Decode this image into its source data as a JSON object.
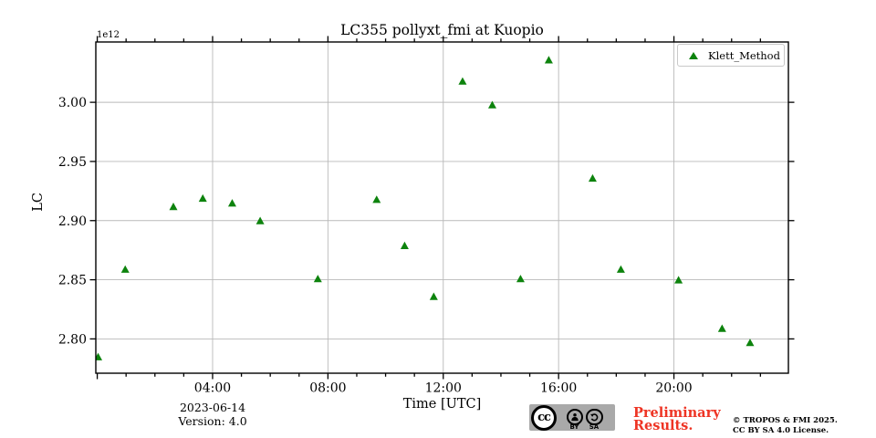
{
  "chart_data": {
    "type": "scatter",
    "title": "LC355 pollyxt_fmi at Kuopio",
    "xlabel": "Time [UTC]",
    "ylabel": "LC",
    "y_offset_label": "1e12",
    "y_unit_factor": 1000000000000.0,
    "grid": true,
    "legend_position": "upper right",
    "xlim_hours": [
      -0.05,
      23.97
    ],
    "ylim": [
      2.771,
      3.051
    ],
    "x_major_ticks": {
      "hours": [
        4,
        8,
        12,
        16,
        20
      ],
      "labels": [
        "04:00",
        "08:00",
        "12:00",
        "16:00",
        "20:00"
      ]
    },
    "x_minor_tick_every_hours": 1,
    "x_edge_tick_hours": [
      0
    ],
    "y_ticks": {
      "values": [
        2.8,
        2.85,
        2.9,
        2.95,
        3.0
      ],
      "labels": [
        "2.80",
        "2.85",
        "2.90",
        "2.95",
        "3.00"
      ]
    },
    "series": [
      {
        "name": "Klett_Method",
        "marker": "triangle-up",
        "color": "#0d830d",
        "points": [
          {
            "time_utc": "00:02",
            "hour": 0.03,
            "lc_1e12": 2.785
          },
          {
            "time_utc": "00:58",
            "hour": 0.97,
            "lc_1e12": 2.859
          },
          {
            "time_utc": "02:38",
            "hour": 2.64,
            "lc_1e12": 2.912
          },
          {
            "time_utc": "03:40",
            "hour": 3.66,
            "lc_1e12": 2.919
          },
          {
            "time_utc": "04:41",
            "hour": 4.68,
            "lc_1e12": 2.915
          },
          {
            "time_utc": "05:39",
            "hour": 5.65,
            "lc_1e12": 2.9
          },
          {
            "time_utc": "07:39",
            "hour": 7.65,
            "lc_1e12": 2.851
          },
          {
            "time_utc": "09:41",
            "hour": 9.69,
            "lc_1e12": 2.918
          },
          {
            "time_utc": "10:40",
            "hour": 10.66,
            "lc_1e12": 2.879
          },
          {
            "time_utc": "11:40",
            "hour": 11.67,
            "lc_1e12": 2.836
          },
          {
            "time_utc": "12:40",
            "hour": 12.67,
            "lc_1e12": 3.018
          },
          {
            "time_utc": "13:42",
            "hour": 13.7,
            "lc_1e12": 2.998
          },
          {
            "time_utc": "14:41",
            "hour": 14.68,
            "lc_1e12": 2.851
          },
          {
            "time_utc": "15:40",
            "hour": 15.66,
            "lc_1e12": 3.036
          },
          {
            "time_utc": "17:11",
            "hour": 17.18,
            "lc_1e12": 2.936
          },
          {
            "time_utc": "18:10",
            "hour": 18.16,
            "lc_1e12": 2.859
          },
          {
            "time_utc": "20:10",
            "hour": 20.16,
            "lc_1e12": 2.85
          },
          {
            "time_utc": "21:40",
            "hour": 21.67,
            "lc_1e12": 2.809
          },
          {
            "time_utc": "22:38",
            "hour": 22.64,
            "lc_1e12": 2.797
          }
        ]
      }
    ],
    "colors": {
      "marker_green": "#0d830d",
      "gridline_gray": "#b9b9b9",
      "axis_black": "#000000"
    }
  },
  "footer": {
    "date": "2023-06-14",
    "version": "Version: 4.0",
    "preliminary": [
      "Preliminary",
      "Results."
    ],
    "preliminary_color": "#ee3424",
    "copyright": [
      "© TROPOS & FMI 2025.",
      "CC BY SA 4.0 License."
    ],
    "cc_badge": {
      "cc_label": "cc",
      "by_label": "BY",
      "sa_label": "SA"
    }
  }
}
